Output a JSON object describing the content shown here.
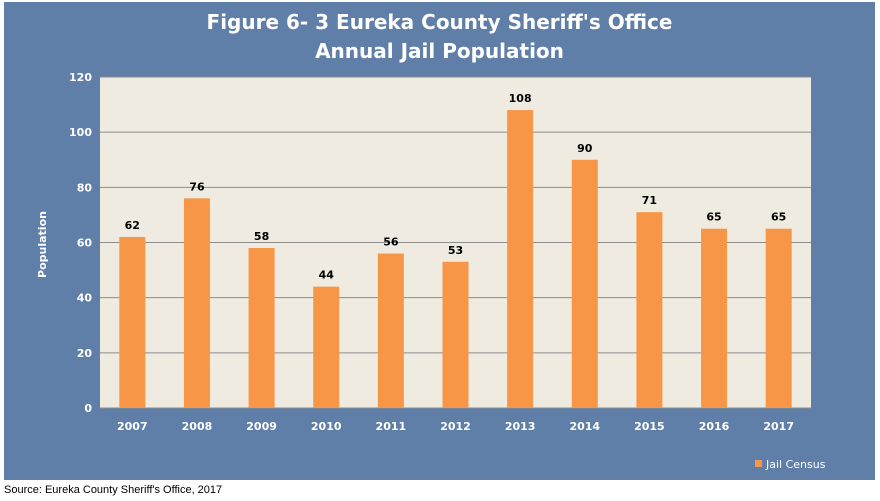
{
  "title_line1": "Figure 6- 3 Eureka County Sheriff's Office",
  "title_line2": "Annual Jail Population",
  "source": "Source: Eureka County Sheriff's Office, 2017",
  "colors": {
    "panel_background": "#5f7fa8",
    "plot_background": "#efebe0",
    "bar": "#f79646",
    "gridline": "#8c8c8c"
  },
  "chart_data": {
    "type": "bar",
    "categories": [
      "2007",
      "2008",
      "2009",
      "2010",
      "2011",
      "2012",
      "2013",
      "2014",
      "2015",
      "2016",
      "2017"
    ],
    "series": [
      {
        "name": "Jail Census",
        "values": [
          62,
          76,
          58,
          44,
          56,
          53,
          108,
          90,
          71,
          65,
          65
        ]
      }
    ],
    "ylabel": "Population",
    "xlabel": "",
    "ylim": [
      0,
      120
    ],
    "yticks": [
      0,
      20,
      40,
      60,
      80,
      100,
      120
    ],
    "grid": true,
    "data_labels": true,
    "legend_position": "bottom-right"
  }
}
